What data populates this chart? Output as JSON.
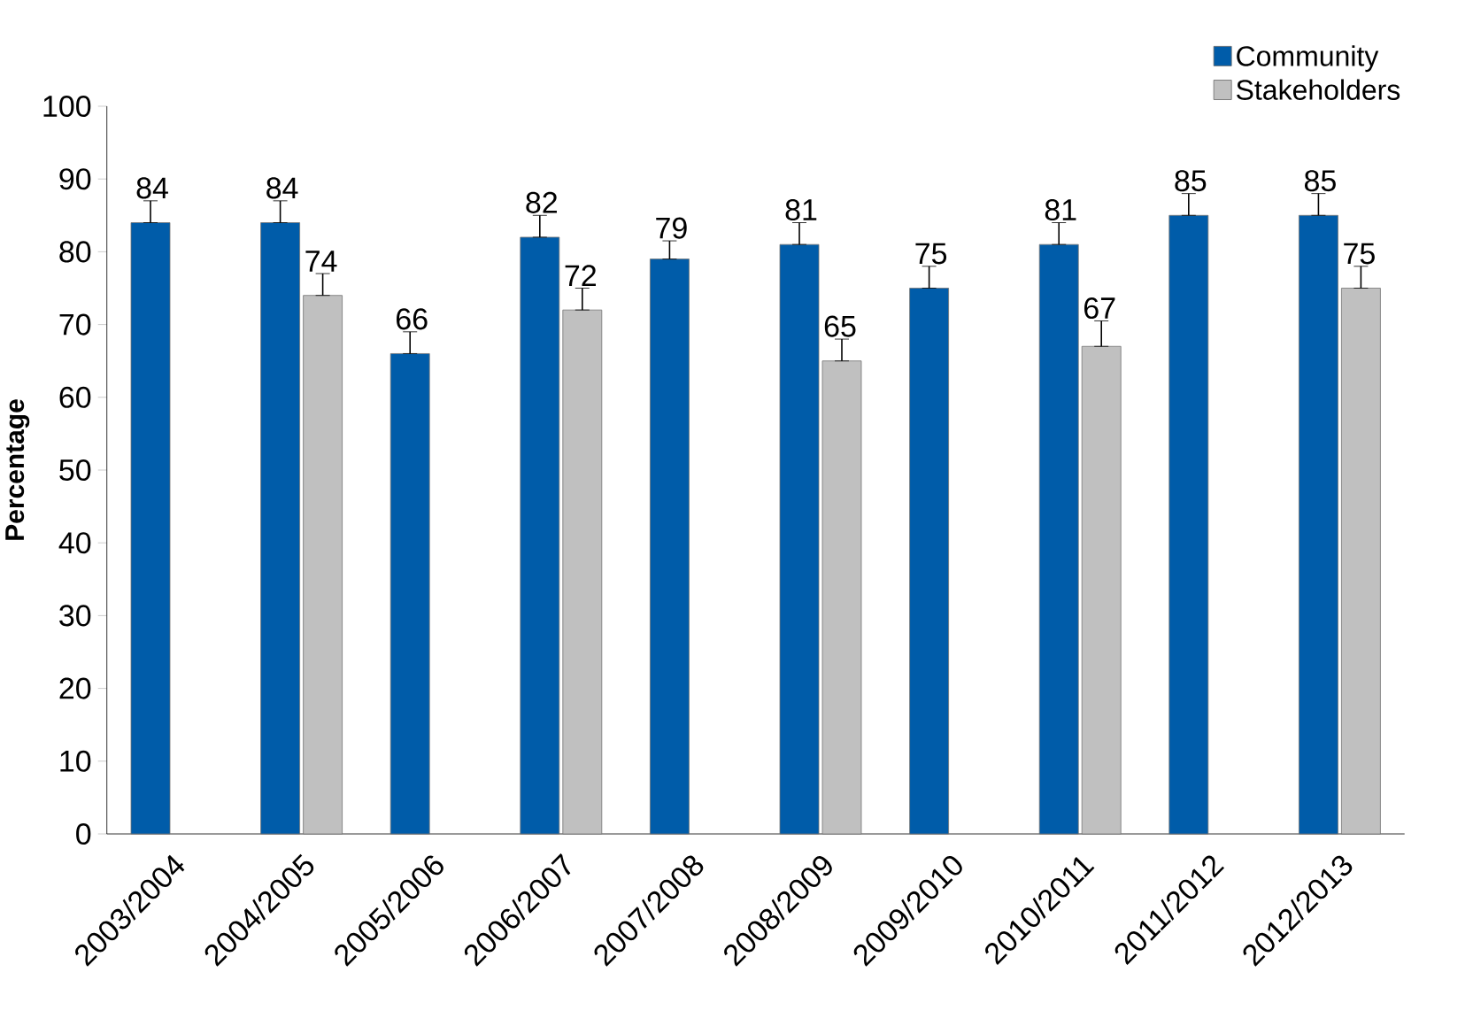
{
  "chart_data": {
    "type": "bar",
    "ylabel": "Percentage",
    "categories": [
      "2003/2004",
      "2004/2005",
      "2005/2006",
      "2006/2007",
      "2007/2008",
      "2008/2009",
      "2009/2010",
      "2010/2011",
      "2011/2012",
      "2012/2013"
    ],
    "series": [
      {
        "name": "Community",
        "color": "#005ca9",
        "values": [
          84,
          84,
          66,
          82,
          79,
          81,
          75,
          81,
          85,
          85
        ],
        "errors": [
          [
            84,
            87
          ],
          [
            84,
            87
          ],
          [
            66,
            69
          ],
          [
            82,
            85
          ],
          [
            79,
            81.5
          ],
          [
            81,
            84
          ],
          [
            75,
            78
          ],
          [
            81,
            84
          ],
          [
            85,
            88
          ],
          [
            85,
            88
          ]
        ]
      },
      {
        "name": "Stakeholders",
        "color": "#c0c0c0",
        "values": [
          null,
          74,
          null,
          72,
          null,
          65,
          null,
          67,
          null,
          75
        ],
        "errors": [
          null,
          [
            74,
            77
          ],
          null,
          [
            72,
            75
          ],
          null,
          [
            65,
            68
          ],
          null,
          [
            67,
            70.5
          ],
          null,
          [
            75,
            78
          ]
        ]
      }
    ],
    "ylim": [
      0,
      100
    ],
    "yticks": [
      0,
      10,
      20,
      30,
      40,
      50,
      60,
      70,
      80,
      90,
      100
    ],
    "grid": false,
    "legend": "top right",
    "data_labels": true
  }
}
